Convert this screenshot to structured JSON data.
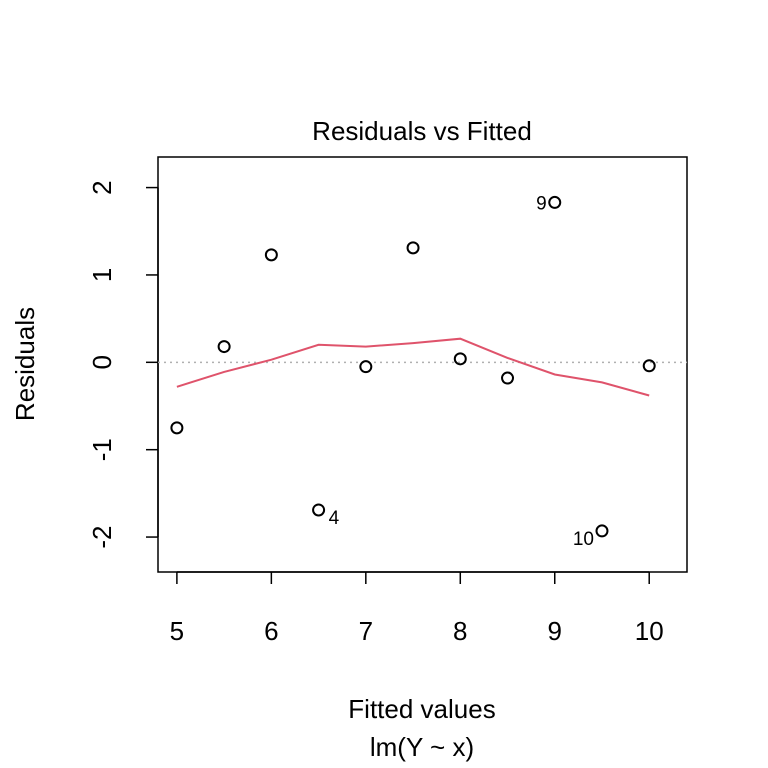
{
  "chart_data": {
    "type": "scatter",
    "title": "Residuals vs Fitted",
    "xlabel": "Fitted values",
    "subtitle": "lm(Y ~ x)",
    "ylabel": "Residuals",
    "xlim": [
      4.8,
      10.4
    ],
    "ylim": [
      -2.4,
      2.35
    ],
    "x_ticks": [
      5,
      6,
      7,
      8,
      9,
      10
    ],
    "y_ticks": [
      -2,
      -1,
      0,
      1,
      2
    ],
    "grid": false,
    "reference_line": {
      "y": 0,
      "style": "dotted",
      "color": "#b0b0b0"
    },
    "points": [
      {
        "x": 5.0,
        "y": -0.75,
        "label": ""
      },
      {
        "x": 5.5,
        "y": 0.18,
        "label": ""
      },
      {
        "x": 6.0,
        "y": 1.23,
        "label": ""
      },
      {
        "x": 6.5,
        "y": -1.69,
        "label": "4"
      },
      {
        "x": 7.0,
        "y": -0.05,
        "label": ""
      },
      {
        "x": 7.5,
        "y": 1.31,
        "label": ""
      },
      {
        "x": 8.0,
        "y": 0.04,
        "label": ""
      },
      {
        "x": 8.5,
        "y": -0.18,
        "label": ""
      },
      {
        "x": 9.0,
        "y": 1.83,
        "label": "9"
      },
      {
        "x": 9.5,
        "y": -1.93,
        "label": "10"
      },
      {
        "x": 10.0,
        "y": -0.04,
        "label": ""
      }
    ],
    "smooth_line": {
      "color": "#DF536B",
      "x": [
        5.0,
        5.5,
        6.0,
        6.5,
        7.0,
        7.5,
        8.0,
        8.5,
        9.0,
        9.5,
        10.0
      ],
      "y": [
        -0.28,
        -0.11,
        0.03,
        0.2,
        0.18,
        0.22,
        0.27,
        0.05,
        -0.14,
        -0.23,
        -0.38
      ]
    }
  }
}
